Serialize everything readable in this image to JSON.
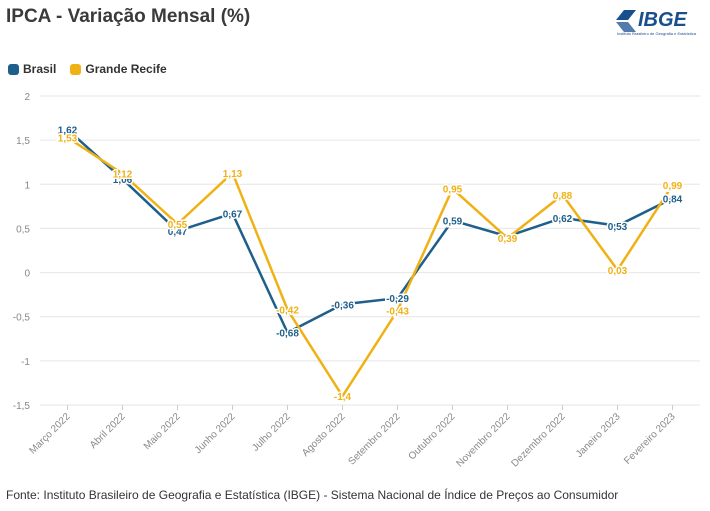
{
  "header": {
    "title": "IPCA - Variação Mensal (%)",
    "logo_text": "IBGE",
    "logo_subtitle": "Instituto Brasileiro de Geografia e Estatística"
  },
  "footer": {
    "source": "Fonte: Instituto Brasileiro de Geografia e Estatística (IBGE) - Sistema Nacional de Índice de Preços ao Consumidor"
  },
  "colors": {
    "brasil": "#1f5f8b",
    "recife": "#f0b114",
    "brand": "#1a4f8f"
  },
  "chart_data": {
    "type": "line",
    "title": "IPCA - Variação Mensal (%)",
    "categories": [
      "Março 2022",
      "Abril 2022",
      "Maio 2022",
      "Junho 2022",
      "Julho 2022",
      "Agosto 2022",
      "Setembro 2022",
      "Outubro 2022",
      "Novembro 2022",
      "Dezembro 2022",
      "Janeiro 2023",
      "Fevereiro 2023"
    ],
    "series": [
      {
        "name": "Brasil",
        "color": "#1f5f8b",
        "values": [
          1.62,
          1.06,
          0.47,
          0.67,
          -0.68,
          -0.36,
          -0.29,
          0.59,
          0.41,
          0.62,
          0.53,
          0.84
        ],
        "labels": [
          "1,62",
          "1,06",
          "0,47",
          "0,67",
          "-0,68",
          "-0,36",
          "-0,29",
          "0,59",
          "",
          "0,62",
          "0,53",
          "0,84"
        ]
      },
      {
        "name": "Grande Recife",
        "color": "#f0b114",
        "values": [
          1.53,
          1.12,
          0.55,
          1.13,
          -0.42,
          -1.4,
          -0.43,
          0.95,
          0.39,
          0.88,
          0.03,
          0.99
        ],
        "labels": [
          "1,53",
          "1,12",
          "0,55",
          "1,13",
          "-0,42",
          "-1,4",
          "-0,43",
          "0,95",
          "0,39",
          "0,88",
          "0,03",
          "0,99"
        ]
      }
    ],
    "yticks": [
      "2",
      "1,5",
      "1",
      "0,5",
      "0",
      "-0,5",
      "-1",
      "-1,5"
    ],
    "ylim": [
      -1.5,
      2
    ],
    "grid": true,
    "legend_position": "top-left",
    "xlabel": "",
    "ylabel": ""
  }
}
